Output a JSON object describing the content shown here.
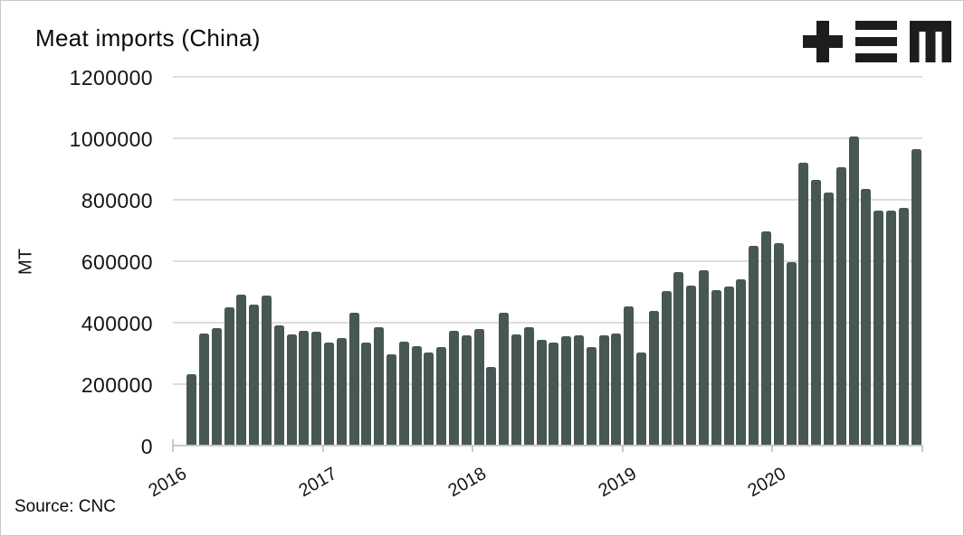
{
  "header": {
    "title": "Meat imports (China)",
    "logo_name": "tem-logo",
    "logo_color": "#1d1d1b"
  },
  "source": {
    "label": "Source: CNC"
  },
  "chart_data": {
    "type": "bar",
    "title": "Meat imports (China)",
    "xlabel": "",
    "ylabel": "MT",
    "ylim": [
      0,
      1200000
    ],
    "grid": true,
    "legend": false,
    "bar_color": "#475754",
    "grid_color": "#dddddd",
    "axis_color": "#c9c9c9",
    "text_color": "#111111",
    "ytick_labels": [
      "0",
      "200000",
      "400000",
      "600000",
      "800000",
      "1000000",
      "1200000"
    ],
    "yticks": [
      0,
      200000,
      400000,
      600000,
      800000,
      1000000,
      1200000
    ],
    "year_tick_labels": [
      "2016",
      "2017",
      "2018",
      "2019",
      "2020"
    ],
    "months": [
      "2016-02",
      "2016-03",
      "2016-04",
      "2016-05",
      "2016-06",
      "2016-07",
      "2016-08",
      "2016-09",
      "2016-10",
      "2016-11",
      "2016-12",
      "2017-01",
      "2017-02",
      "2017-03",
      "2017-04",
      "2017-05",
      "2017-06",
      "2017-07",
      "2017-08",
      "2017-09",
      "2017-10",
      "2017-11",
      "2017-12",
      "2018-01",
      "2018-02",
      "2018-03",
      "2018-04",
      "2018-05",
      "2018-06",
      "2018-07",
      "2018-08",
      "2018-09",
      "2018-10",
      "2018-11",
      "2018-12",
      "2019-01",
      "2019-02",
      "2019-03",
      "2019-04",
      "2019-05",
      "2019-06",
      "2019-07",
      "2019-08",
      "2019-09",
      "2019-10",
      "2019-11",
      "2019-12",
      "2020-01",
      "2020-02",
      "2020-03",
      "2020-04",
      "2020-05",
      "2020-06",
      "2020-07",
      "2020-08",
      "2020-09",
      "2020-10",
      "2020-11",
      "2020-12"
    ],
    "values": [
      232000,
      365000,
      381000,
      450000,
      491000,
      459000,
      488000,
      392000,
      362000,
      373000,
      370000,
      336000,
      351000,
      433000,
      336000,
      385000,
      298000,
      338000,
      324000,
      302000,
      321000,
      375000,
      358000,
      379000,
      255000,
      431000,
      362000,
      384000,
      343000,
      336000,
      356000,
      358000,
      320000,
      360000,
      365000,
      452000,
      302000,
      437000,
      503000,
      564000,
      521000,
      570000,
      507000,
      519000,
      541000,
      650000,
      696000,
      660000,
      598000,
      921000,
      864000,
      824000,
      906000,
      1006000,
      835000,
      765000,
      764000,
      775000,
      965000
    ]
  }
}
